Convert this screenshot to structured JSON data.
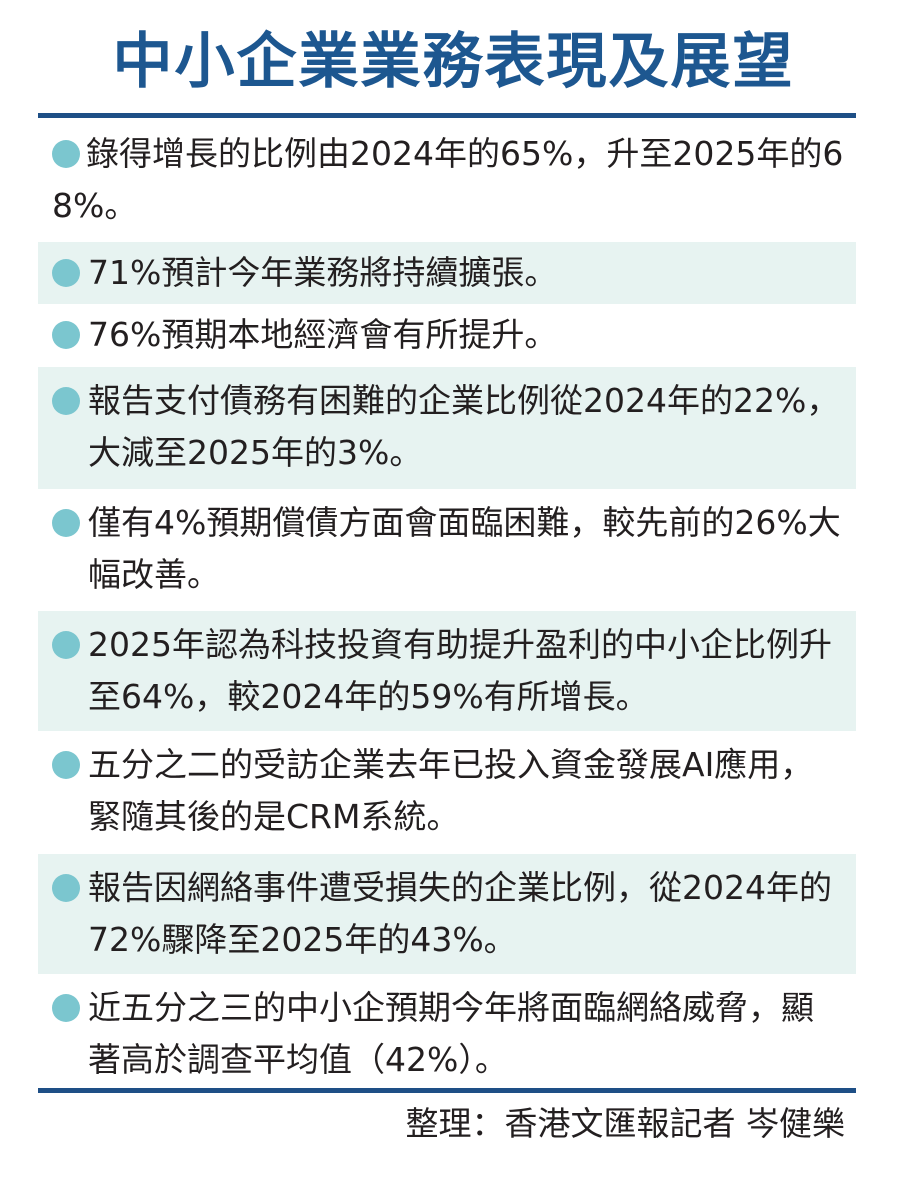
{
  "title": "中小企業業務表現及展望",
  "items": [
    {
      "text": "錄得增長的比例由2024年的65%，升至2025年的68%。",
      "shaded": false
    },
    {
      "text": "71%預計今年業務將持續擴張。",
      "shaded": true
    },
    {
      "text": "76%預期本地經濟會有所提升。",
      "shaded": false
    },
    {
      "text": "報告支付債務有困難的企業比例從2024年的22%，大減至2025年的3%。",
      "shaded": true
    },
    {
      "text": "僅有4%預期償債方面會面臨困難，較先前的26%大幅改善。",
      "shaded": false
    },
    {
      "text": "2025年認為科技投資有助提升盈利的中小企比例升至64%，較2024年的59%有所增長。",
      "shaded": true
    },
    {
      "text": "五分之二的受訪企業去年已投入資金發展AI應用，緊隨其後的是CRM系統。",
      "shaded": false
    },
    {
      "text": "報告因網絡事件遭受損失的企業比例，從2024年的72%驟降至2025年的43%。",
      "shaded": true
    },
    {
      "text": "近五分之三的中小企預期今年將面臨網絡威脅，顯著高於調查平均值（42%）。",
      "shaded": false
    }
  ],
  "credit": "整理：香港文匯報記者 岑健樂",
  "colors": {
    "title": "#1d5790",
    "rule": "#1e4f86",
    "band": "#e7f3f1",
    "bullet": "#7bc6cf",
    "text": "#231f20"
  }
}
